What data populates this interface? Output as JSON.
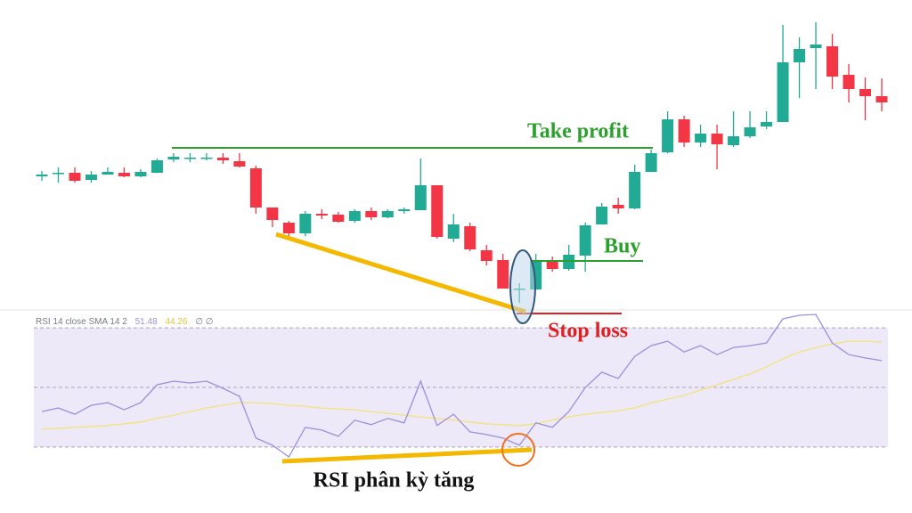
{
  "chart_data": [
    {
      "type": "candlestick",
      "up_color": "#22ab94",
      "down_color": "#f23645",
      "ylim": [
        40,
        400
      ],
      "open": [
        202,
        205,
        206,
        198,
        204,
        206,
        202,
        206,
        221,
        223,
        223,
        223,
        219,
        211,
        167,
        150,
        138,
        160,
        159,
        152,
        163,
        156,
        163,
        164,
        192,
        132,
        146,
        119,
        108,
        75,
        75,
        108,
        98,
        113,
        148,
        170,
        166,
        207,
        229,
        266,
        240,
        250,
        237,
        247,
        258,
        263,
        330,
        346,
        348,
        316,
        300,
        292
      ],
      "high": [
        208,
        212,
        212,
        208,
        212,
        212,
        210,
        222,
        228,
        228,
        228,
        228,
        228,
        214,
        167,
        152,
        163,
        165,
        162,
        165,
        167,
        165,
        167,
        222,
        192,
        160,
        150,
        125,
        115,
        82,
        115,
        112,
        125,
        150,
        172,
        178,
        215,
        232,
        275,
        270,
        260,
        260,
        275,
        275,
        275,
        372,
        358,
        375,
        362,
        328,
        313,
        312
      ],
      "low": [
        197,
        195,
        195,
        195,
        204,
        201,
        201,
        206,
        218,
        218,
        220,
        216,
        212,
        160,
        145,
        135,
        135,
        154,
        150,
        150,
        153,
        155,
        160,
        164,
        132,
        128,
        118,
        102,
        76,
        60,
        75,
        95,
        96,
        95,
        148,
        160,
        165,
        207,
        228,
        235,
        235,
        210,
        235,
        245,
        255,
        263,
        290,
        300,
        300,
        285,
        265,
        275
      ],
      "close": [
        204,
        206,
        197,
        204,
        207,
        202,
        207,
        220,
        224,
        223,
        223,
        220,
        213,
        167,
        153,
        138,
        160,
        158,
        151,
        163,
        156,
        163,
        165,
        192,
        134,
        148,
        120,
        107,
        76,
        76,
        108,
        98,
        114,
        147,
        168,
        166,
        207,
        228,
        266,
        240,
        250,
        238,
        247,
        257,
        263,
        330,
        345,
        350,
        314,
        300,
        292,
        285
      ]
    },
    {
      "type": "line",
      "ylim": [
        24.6,
        75.4
      ],
      "hlines": [
        70,
        50,
        30
      ],
      "band_color": "#ede9f8",
      "legend": {
        "label": "RSI 14 close SMA 14 2",
        "values": [
          51.48,
          44.26
        ],
        "extra": "∅ ∅"
      },
      "series": [
        {
          "color": "#9d8fdc",
          "values": [
            41.9,
            43.1,
            41.0,
            44.0,
            44.9,
            42.5,
            44.9,
            50.9,
            52.1,
            51.5,
            52.1,
            49.7,
            47.0,
            33.0,
            30.6,
            26.7,
            36.6,
            35.7,
            33.6,
            39.0,
            37.5,
            39.6,
            38.1,
            52.1,
            37.2,
            41.0,
            35.1,
            34.2,
            33.0,
            30.6,
            38.1,
            36.6,
            41.9,
            50.0,
            55.1,
            53.0,
            60.4,
            64.0,
            65.5,
            61.9,
            64.0,
            61.0,
            63.4,
            64.0,
            64.9,
            73.0,
            74.2,
            74.5,
            64.9,
            61.0,
            59.9,
            59.0
          ]
        },
        {
          "color": "#f4e27a",
          "values": [
            36.0,
            36.3,
            36.6,
            36.9,
            37.2,
            37.8,
            38.4,
            39.6,
            40.7,
            41.9,
            43.1,
            44.0,
            44.9,
            44.9,
            44.6,
            44.0,
            43.7,
            43.1,
            42.8,
            42.5,
            41.9,
            41.3,
            40.7,
            40.1,
            39.6,
            39.0,
            38.4,
            37.8,
            37.5,
            37.2,
            37.8,
            39.0,
            40.1,
            41.0,
            41.6,
            42.2,
            43.1,
            44.9,
            46.1,
            47.3,
            49.1,
            50.9,
            52.7,
            54.5,
            56.9,
            59.6,
            61.9,
            63.4,
            64.6,
            65.5,
            65.5,
            65.2
          ]
        }
      ]
    }
  ],
  "annotations": {
    "take_profit": "Take profit",
    "buy": "Buy",
    "stop_loss": "Stop loss",
    "divergence": "RSI phân kỳ tăng"
  }
}
